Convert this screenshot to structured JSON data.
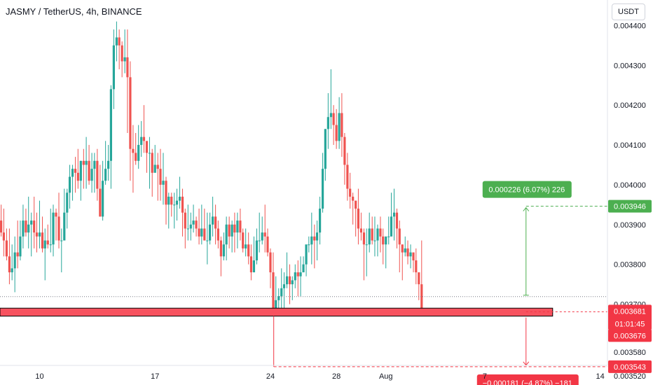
{
  "header": {
    "title": "JASMY / TetherUS, 4h, BINANCE",
    "currency": "USDT"
  },
  "chart_data": {
    "type": "candlestick",
    "symbol": "JASMY / TetherUS",
    "interval": "4h",
    "exchange": "BINANCE",
    "y_ticks": [
      "0.004400",
      "0.004300",
      "0.004200",
      "0.004100",
      "0.004000",
      "0.003900",
      "0.003800",
      "0.003700",
      "0.003580",
      "0.003520"
    ],
    "y_tick_values": [
      0.0044,
      0.0043,
      0.0042,
      0.0041,
      0.004,
      0.0039,
      0.0038,
      0.0037,
      0.00358,
      0.00352
    ],
    "x_ticks": [
      "10",
      "17",
      "24",
      "28",
      "Aug",
      "7",
      "14"
    ],
    "x_tick_positions": [
      -21,
      -14,
      -7,
      -3,
      0,
      6,
      13
    ],
    "x_range": [
      -23.4,
      16.2
    ],
    "y_range": [
      0.003497,
      0.004464
    ],
    "candles": [
      [
        -23.5,
        0.0039,
        0.00391,
        0.00392,
        0.00385
      ],
      [
        -23.33,
        0.00391,
        0.00388,
        0.00395,
        0.00387
      ],
      [
        -23.17,
        0.00388,
        0.00386,
        0.00394,
        0.00382
      ],
      [
        -23.0,
        0.00386,
        0.00382,
        0.00389,
        0.00381
      ],
      [
        -22.83,
        0.00382,
        0.00378,
        0.00389,
        0.00375
      ],
      [
        -22.67,
        0.00378,
        0.00379,
        0.00385,
        0.00376
      ],
      [
        -22.5,
        0.00379,
        0.00383,
        0.00387,
        0.00373
      ],
      [
        -22.33,
        0.00383,
        0.00382,
        0.00391,
        0.00379
      ],
      [
        -22.17,
        0.00382,
        0.00387,
        0.00391,
        0.00381
      ],
      [
        -22.0,
        0.00387,
        0.00391,
        0.00395,
        0.00384
      ],
      [
        -21.83,
        0.00391,
        0.00388,
        0.00394,
        0.00387
      ],
      [
        -21.67,
        0.00388,
        0.0039,
        0.00397,
        0.00384
      ],
      [
        -21.5,
        0.0039,
        0.00391,
        0.00393,
        0.00382
      ],
      [
        -21.33,
        0.00391,
        0.00388,
        0.00397,
        0.00384
      ],
      [
        -21.17,
        0.00388,
        0.00387,
        0.00393,
        0.00383
      ],
      [
        -21.0,
        0.00387,
        0.00388,
        0.00396,
        0.00384
      ],
      [
        -20.83,
        0.00388,
        0.00384,
        0.00392,
        0.00383
      ],
      [
        -20.67,
        0.00384,
        0.00386,
        0.00389,
        0.00376
      ],
      [
        -20.5,
        0.00386,
        0.00385,
        0.0039,
        0.00384
      ],
      [
        -20.33,
        0.00385,
        0.00385,
        0.00394,
        0.00383
      ],
      [
        -20.17,
        0.00385,
        0.00393,
        0.00395,
        0.00382
      ],
      [
        -20.0,
        0.00393,
        0.00392,
        0.00394,
        0.00386
      ],
      [
        -19.83,
        0.00392,
        0.00386,
        0.00398,
        0.00384
      ],
      [
        -19.67,
        0.00386,
        0.00386,
        0.00389,
        0.00378
      ],
      [
        -19.5,
        0.00386,
        0.00393,
        0.00399,
        0.00387
      ],
      [
        -19.33,
        0.00393,
        0.00398,
        0.00399,
        0.00389
      ],
      [
        -19.17,
        0.00398,
        0.00402,
        0.00405,
        0.00394
      ],
      [
        -19.0,
        0.00402,
        0.00404,
        0.00405,
        0.00396
      ],
      [
        -18.83,
        0.00404,
        0.00403,
        0.00407,
        0.00398
      ],
      [
        -18.67,
        0.00403,
        0.00401,
        0.00409,
        0.00399
      ],
      [
        -18.5,
        0.00401,
        0.00406,
        0.00406,
        0.00396
      ],
      [
        -18.33,
        0.00406,
        0.00405,
        0.00409,
        0.00399
      ],
      [
        -18.17,
        0.00405,
        0.00406,
        0.00412,
        0.00399
      ],
      [
        -18.0,
        0.00406,
        0.00401,
        0.0041,
        0.004
      ],
      [
        -17.83,
        0.00401,
        0.00404,
        0.00408,
        0.00398
      ],
      [
        -17.67,
        0.00404,
        0.00406,
        0.00408,
        0.00398
      ],
      [
        -17.5,
        0.00406,
        0.00399,
        0.00409,
        0.00396
      ],
      [
        -17.33,
        0.00399,
        0.00392,
        0.00405,
        0.00392
      ],
      [
        -17.17,
        0.00392,
        0.00401,
        0.00406,
        0.00391
      ],
      [
        -17.0,
        0.00401,
        0.00404,
        0.00411,
        0.004
      ],
      [
        -16.83,
        0.00404,
        0.00406,
        0.0041,
        0.00401
      ],
      [
        -16.67,
        0.00406,
        0.00424,
        0.00425,
        0.00399
      ],
      [
        -16.5,
        0.00424,
        0.00435,
        0.00439,
        0.00419
      ],
      [
        -16.33,
        0.00435,
        0.00437,
        0.00441,
        0.00431
      ],
      [
        -16.17,
        0.00437,
        0.00435,
        0.00439,
        0.00429
      ],
      [
        -16.0,
        0.00435,
        0.00431,
        0.00436,
        0.00427
      ],
      [
        -15.83,
        0.00431,
        0.00432,
        0.00439,
        0.00428
      ],
      [
        -15.67,
        0.00432,
        0.00427,
        0.00439,
        0.00413
      ],
      [
        -15.5,
        0.00427,
        0.00409,
        0.00431,
        0.00401
      ],
      [
        -15.33,
        0.00409,
        0.00408,
        0.00415,
        0.00398
      ],
      [
        -15.17,
        0.00408,
        0.00406,
        0.00413,
        0.00405
      ],
      [
        -15.0,
        0.00406,
        0.0041,
        0.00415,
        0.00404
      ],
      [
        -14.83,
        0.0041,
        0.00412,
        0.00416,
        0.00407
      ],
      [
        -14.67,
        0.00412,
        0.00411,
        0.0042,
        0.00408
      ],
      [
        -14.5,
        0.00411,
        0.00408,
        0.0041,
        0.00403
      ],
      [
        -14.33,
        0.00408,
        0.00408,
        0.00412,
        0.00399
      ],
      [
        -14.17,
        0.00408,
        0.00403,
        0.00409,
        0.00397
      ],
      [
        -14.0,
        0.00403,
        0.00405,
        0.0041,
        0.00404
      ],
      [
        -13.83,
        0.00405,
        0.00404,
        0.00408,
        0.00396
      ],
      [
        -13.67,
        0.00404,
        0.004,
        0.00409,
        0.00396
      ],
      [
        -13.5,
        0.004,
        0.00401,
        0.00408,
        0.00395
      ],
      [
        -13.33,
        0.00401,
        0.00395,
        0.00402,
        0.0039
      ],
      [
        -13.17,
        0.00395,
        0.00397,
        0.00398,
        0.00389
      ],
      [
        -13.0,
        0.00397,
        0.00395,
        0.00398,
        0.00392
      ],
      [
        -12.83,
        0.00395,
        0.00395,
        0.00398,
        0.00389
      ],
      [
        -12.67,
        0.00395,
        0.00396,
        0.00399,
        0.00391
      ],
      [
        -12.5,
        0.00396,
        0.00397,
        0.00402,
        0.00394
      ],
      [
        -12.33,
        0.00397,
        0.00393,
        0.00399,
        0.00387
      ],
      [
        -12.17,
        0.00393,
        0.00389,
        0.00394,
        0.00384
      ],
      [
        -12.0,
        0.00389,
        0.00389,
        0.00395,
        0.00386
      ],
      [
        -11.83,
        0.00389,
        0.0039,
        0.00393,
        0.00386
      ],
      [
        -11.67,
        0.0039,
        0.00391,
        0.00395,
        0.00388
      ],
      [
        -11.5,
        0.00391,
        0.00389,
        0.00392,
        0.00387
      ],
      [
        -11.33,
        0.00389,
        0.00387,
        0.00394,
        0.00385
      ],
      [
        -11.17,
        0.00387,
        0.00389,
        0.00395,
        0.00385
      ],
      [
        -11.0,
        0.00389,
        0.00386,
        0.00394,
        0.00386
      ],
      [
        -10.83,
        0.00386,
        0.00386,
        0.00393,
        0.0038
      ],
      [
        -10.67,
        0.00386,
        0.0039,
        0.00393,
        0.00385
      ],
      [
        -10.5,
        0.0039,
        0.00392,
        0.00397,
        0.00387
      ],
      [
        -10.33,
        0.00392,
        0.00389,
        0.00395,
        0.00385
      ],
      [
        -10.17,
        0.00389,
        0.00386,
        0.00391,
        0.00384
      ],
      [
        -10.0,
        0.00386,
        0.00382,
        0.00387,
        0.00377
      ],
      [
        -9.83,
        0.00382,
        0.00385,
        0.00388,
        0.00381
      ],
      [
        -9.67,
        0.00385,
        0.0039,
        0.00392,
        0.00381
      ],
      [
        -9.5,
        0.0039,
        0.00387,
        0.00392,
        0.00384
      ],
      [
        -9.33,
        0.00387,
        0.0039,
        0.00391,
        0.00383
      ],
      [
        -9.17,
        0.0039,
        0.00388,
        0.00393,
        0.00383
      ],
      [
        -9.0,
        0.00388,
        0.00391,
        0.00393,
        0.00384
      ],
      [
        -8.83,
        0.00391,
        0.00388,
        0.00394,
        0.00386
      ],
      [
        -8.67,
        0.00388,
        0.00384,
        0.00389,
        0.00383
      ],
      [
        -8.5,
        0.00384,
        0.00385,
        0.00389,
        0.00382
      ],
      [
        -8.33,
        0.00385,
        0.00382,
        0.00388,
        0.0038
      ],
      [
        -8.17,
        0.00382,
        0.00378,
        0.00385,
        0.00376
      ],
      [
        -8.0,
        0.00378,
        0.00381,
        0.00387,
        0.00378
      ],
      [
        -7.83,
        0.00381,
        0.00386,
        0.00389,
        0.0038
      ],
      [
        -7.67,
        0.00386,
        0.00386,
        0.00393,
        0.00383
      ],
      [
        -7.5,
        0.00386,
        0.00388,
        0.00392,
        0.00385
      ],
      [
        -7.33,
        0.00388,
        0.00387,
        0.00395,
        0.00383
      ],
      [
        -7.17,
        0.00387,
        0.00383,
        0.00389,
        0.00382
      ],
      [
        -7.0,
        0.00383,
        0.00378,
        0.00384,
        0.00374
      ],
      [
        -6.83,
        0.00378,
        0.00369,
        0.00383,
        0.00369
      ],
      [
        -6.67,
        0.00369,
        0.00371,
        0.00377,
        0.00368
      ],
      [
        -6.5,
        0.00371,
        0.00372,
        0.00374,
        0.00369
      ],
      [
        -6.33,
        0.00372,
        0.00374,
        0.00379,
        0.00368
      ],
      [
        -6.17,
        0.00374,
        0.00375,
        0.00378,
        0.00369
      ],
      [
        -6.0,
        0.00375,
        0.00377,
        0.00383,
        0.00374
      ],
      [
        -5.83,
        0.00377,
        0.00375,
        0.0038,
        0.0037
      ],
      [
        -5.67,
        0.00375,
        0.00376,
        0.00377,
        0.00371
      ],
      [
        -5.5,
        0.00376,
        0.00378,
        0.0038,
        0.00374
      ],
      [
        -5.33,
        0.00378,
        0.00377,
        0.00381,
        0.00372
      ],
      [
        -5.17,
        0.00377,
        0.00378,
        0.00382,
        0.00372
      ],
      [
        -5.0,
        0.00378,
        0.0038,
        0.00382,
        0.00378
      ],
      [
        -4.83,
        0.0038,
        0.00385,
        0.00385,
        0.00377
      ],
      [
        -4.67,
        0.00385,
        0.00385,
        0.00387,
        0.00383
      ],
      [
        -4.5,
        0.00385,
        0.00387,
        0.00393,
        0.0038
      ],
      [
        -4.33,
        0.00387,
        0.00386,
        0.0039,
        0.00379
      ],
      [
        -4.17,
        0.00386,
        0.00388,
        0.00391,
        0.00381
      ],
      [
        -4.0,
        0.00388,
        0.00394,
        0.00397,
        0.00385
      ],
      [
        -3.83,
        0.00394,
        0.00404,
        0.00408,
        0.00393
      ],
      [
        -3.67,
        0.00404,
        0.00414,
        0.00414,
        0.00401
      ],
      [
        -3.5,
        0.00414,
        0.00417,
        0.00423,
        0.00409
      ],
      [
        -3.33,
        0.00417,
        0.00418,
        0.00429,
        0.00414
      ],
      [
        -3.17,
        0.00418,
        0.00415,
        0.0042,
        0.0041
      ],
      [
        -3.0,
        0.00415,
        0.00411,
        0.00419,
        0.00409
      ],
      [
        -2.83,
        0.00411,
        0.00418,
        0.00422,
        0.00409
      ],
      [
        -2.67,
        0.00418,
        0.00412,
        0.00423,
        0.00407
      ],
      [
        -2.5,
        0.00412,
        0.00405,
        0.00413,
        0.004
      ],
      [
        -2.33,
        0.00405,
        0.00399,
        0.00408,
        0.00396
      ],
      [
        -2.17,
        0.00399,
        0.00397,
        0.00403,
        0.00394
      ],
      [
        -2.0,
        0.00397,
        0.00396,
        0.00398,
        0.0039
      ],
      [
        -1.83,
        0.00396,
        0.00394,
        0.00396,
        0.00387
      ],
      [
        -1.67,
        0.00394,
        0.00389,
        0.00399,
        0.00385
      ],
      [
        -1.5,
        0.00389,
        0.00388,
        0.00393,
        0.00386
      ],
      [
        -1.33,
        0.00388,
        0.00385,
        0.00389,
        0.00376
      ],
      [
        -1.17,
        0.00385,
        0.00385,
        0.00389,
        0.00377
      ],
      [
        -1.0,
        0.00385,
        0.00389,
        0.00393,
        0.00383
      ],
      [
        -0.83,
        0.00389,
        0.00386,
        0.00392,
        0.00385
      ],
      [
        -0.67,
        0.00386,
        0.00386,
        0.00392,
        0.00382
      ],
      [
        -0.5,
        0.00386,
        0.00389,
        0.0039,
        0.00382
      ],
      [
        -0.33,
        0.00389,
        0.00387,
        0.00392,
        0.00383
      ],
      [
        -0.17,
        0.00387,
        0.00385,
        0.00389,
        0.0038
      ],
      [
        0.0,
        0.00385,
        0.00387,
        0.00387,
        0.00379
      ],
      [
        0.17,
        0.00387,
        0.00387,
        0.00392,
        0.00385
      ],
      [
        0.33,
        0.00387,
        0.00392,
        0.00398,
        0.00391
      ],
      [
        0.5,
        0.00392,
        0.00393,
        0.00399,
        0.00386
      ],
      [
        0.67,
        0.00393,
        0.00389,
        0.00394,
        0.00384
      ],
      [
        0.83,
        0.00389,
        0.00385,
        0.00391,
        0.00378
      ],
      [
        1.0,
        0.00385,
        0.00383,
        0.00385,
        0.00376
      ],
      [
        1.17,
        0.00383,
        0.00384,
        0.00387,
        0.00382
      ],
      [
        1.33,
        0.00384,
        0.00382,
        0.00386,
        0.0038
      ],
      [
        1.5,
        0.00382,
        0.00383,
        0.00385,
        0.00379
      ],
      [
        1.67,
        0.00383,
        0.00381,
        0.00383,
        0.00378
      ],
      [
        1.83,
        0.00381,
        0.00378,
        0.00384,
        0.00375
      ],
      [
        2.0,
        0.00378,
        0.00375,
        0.00378,
        0.00371
      ],
      [
        2.17,
        0.00375,
        0.00369,
        0.00386,
        0.00368
      ]
    ],
    "current_price": "0.003681",
    "countdown": "01:01:45",
    "prev_close": "0.003676",
    "target_price": "0.003946",
    "stop_price": "0.003543",
    "target_value": 0.003946,
    "current_value": 0.003681,
    "stop_value": 0.003543,
    "support_zone": [
      0.00367,
      0.00369
    ],
    "dotted_price": 0.003719,
    "tool_x": 8.5,
    "stop_line_start": -6.8,
    "profit_label": "0.000226 (6.07%) 226",
    "loss_label": "−0.000181 (−4.87%) −181",
    "colors": {
      "up": "#26a69a",
      "down": "#ef5350",
      "profit": "#4caf50",
      "loss": "#f23645",
      "zone": "#f7525f",
      "axis_text": "#131722",
      "grid_line": "#e0e3eb"
    }
  }
}
